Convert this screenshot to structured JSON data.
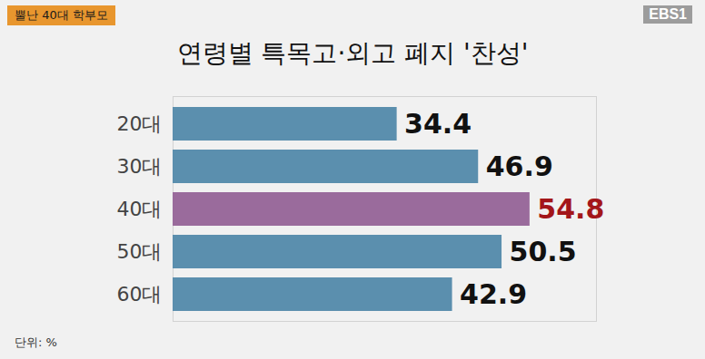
{
  "chart_data": {
    "type": "bar",
    "orientation": "horizontal",
    "title": "연령별 특목고·외고 폐지 '찬성'",
    "annotations": [
      "뿔난 40대 학부모",
      "EBS1",
      "단위: %"
    ],
    "categories": [
      "20대",
      "30대",
      "40대",
      "50대",
      "60대"
    ],
    "values": [
      34.4,
      46.9,
      54.8,
      50.5,
      42.9
    ],
    "colors": [
      "#5b8fae",
      "#5b8fae",
      "#9a6b9c",
      "#5b8fae",
      "#5b8fae"
    ],
    "xlim": [
      0,
      65
    ],
    "xticks": [],
    "grid": false,
    "data_labels": true,
    "tick_labels": "y"
  }
}
